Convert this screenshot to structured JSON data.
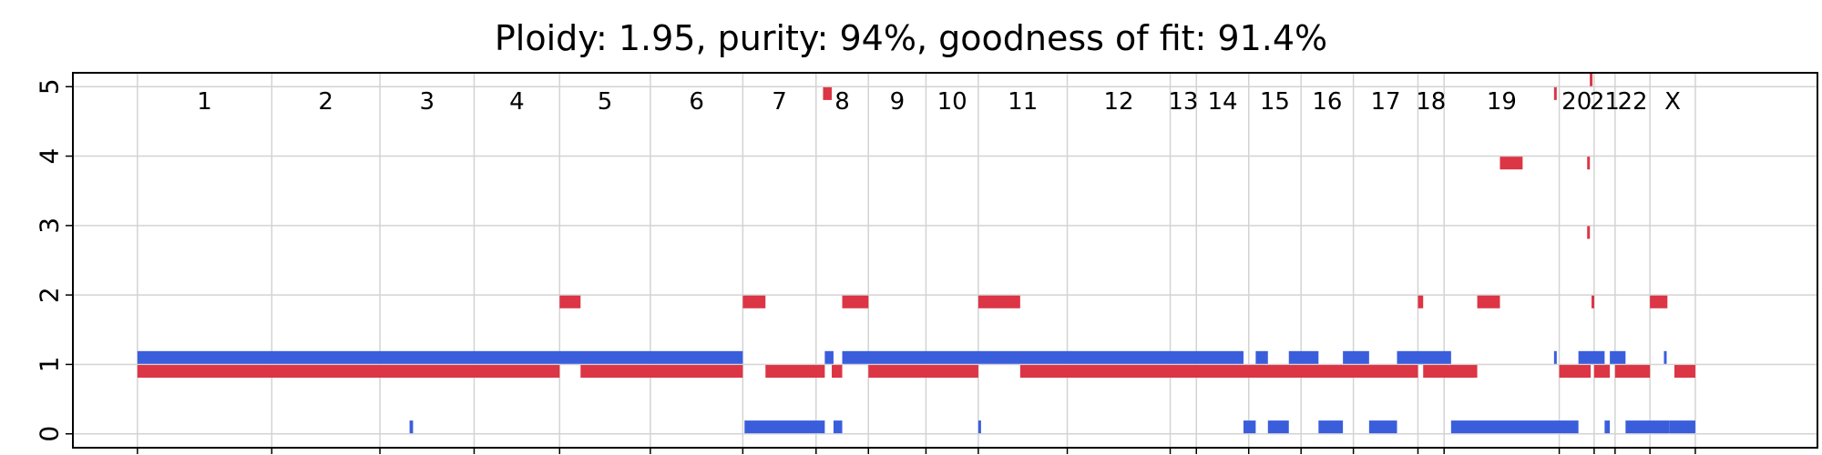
{
  "chart_data": {
    "type": "segment",
    "title": "Ploidy: 1.95, purity: 94%, goodness of fit: 91.4%",
    "xlabel": "",
    "ylabel": "",
    "ylim": [
      -0.2,
      5.2
    ],
    "yticks": [
      0,
      1,
      2,
      3,
      4,
      5
    ],
    "xlim": [
      0,
      100
    ],
    "grid": true,
    "colors": {
      "minor": "#3a5edb",
      "major": "#dc3545",
      "grid": "#d3d3d3"
    },
    "chromosomes": [
      {
        "label": "1",
        "start": 3.7,
        "end": 11.4
      },
      {
        "label": "2",
        "start": 11.4,
        "end": 17.6
      },
      {
        "label": "3",
        "start": 17.6,
        "end": 23.0
      },
      {
        "label": "4",
        "start": 23.0,
        "end": 27.9
      },
      {
        "label": "5",
        "start": 27.9,
        "end": 33.1
      },
      {
        "label": "6",
        "start": 33.1,
        "end": 38.4
      },
      {
        "label": "7",
        "start": 38.4,
        "end": 42.6
      },
      {
        "label": "8",
        "start": 42.6,
        "end": 45.6
      },
      {
        "label": "9",
        "start": 45.6,
        "end": 48.9
      },
      {
        "label": "10",
        "start": 48.9,
        "end": 51.9
      },
      {
        "label": "11",
        "start": 51.9,
        "end": 57.0
      },
      {
        "label": "12",
        "start": 57.0,
        "end": 62.9
      },
      {
        "label": "13",
        "start": 62.9,
        "end": 64.4
      },
      {
        "label": "14",
        "start": 64.4,
        "end": 67.4
      },
      {
        "label": "15",
        "start": 67.4,
        "end": 70.4
      },
      {
        "label": "16",
        "start": 70.4,
        "end": 73.4
      },
      {
        "label": "17",
        "start": 73.4,
        "end": 77.1
      },
      {
        "label": "18",
        "start": 77.1,
        "end": 78.6
      },
      {
        "label": "19",
        "start": 78.6,
        "end": 85.2
      },
      {
        "label": "20",
        "start": 85.2,
        "end": 87.2
      },
      {
        "label": "21",
        "start": 87.2,
        "end": 88.4
      },
      {
        "label": "22",
        "start": 88.4,
        "end": 90.4
      },
      {
        "label": "X",
        "start": 90.4,
        "end": 93.0
      }
    ],
    "series": [
      {
        "segments": [
          {
            "x0": 3.7,
            "x1": 38.4,
            "y": 1.1
          },
          {
            "x0": 19.3,
            "x1": 19.5,
            "y": 0.1
          },
          {
            "x0": 38.5,
            "x1": 43.1,
            "y": 0.1
          },
          {
            "x0": 43.1,
            "x1": 43.6,
            "y": 1.1
          },
          {
            "x0": 43.6,
            "x1": 44.1,
            "y": 0.1
          },
          {
            "x0": 44.1,
            "x1": 67.1,
            "y": 1.1
          },
          {
            "x0": 51.9,
            "x1": 52.05,
            "y": 0.1
          },
          {
            "x0": 67.1,
            "x1": 67.8,
            "y": 0.1
          },
          {
            "x0": 67.8,
            "x1": 68.5,
            "y": 1.1
          },
          {
            "x0": 68.5,
            "x1": 69.7,
            "y": 0.1
          },
          {
            "x0": 69.7,
            "x1": 71.4,
            "y": 1.1
          },
          {
            "x0": 71.4,
            "x1": 72.8,
            "y": 0.1
          },
          {
            "x0": 72.8,
            "x1": 74.3,
            "y": 1.1
          },
          {
            "x0": 74.3,
            "x1": 75.9,
            "y": 0.1
          },
          {
            "x0": 75.9,
            "x1": 79.0,
            "y": 1.1
          },
          {
            "x0": 79.0,
            "x1": 86.3,
            "y": 0.1
          },
          {
            "x0": 84.9,
            "x1": 85.0,
            "y": 1.1
          },
          {
            "x0": 86.3,
            "x1": 87.8,
            "y": 1.1
          },
          {
            "x0": 87.8,
            "x1": 88.1,
            "y": 0.1
          },
          {
            "x0": 88.1,
            "x1": 89.0,
            "y": 1.1
          },
          {
            "x0": 89.0,
            "x1": 91.5,
            "y": 0.1
          },
          {
            "x0": 91.2,
            "x1": 91.3,
            "y": 1.1
          },
          {
            "x0": 91.5,
            "x1": 93.0,
            "y": 0.1
          }
        ]
      },
      {
        "segments": [
          {
            "x0": 3.7,
            "x1": 27.9,
            "y": 0.9
          },
          {
            "x0": 27.9,
            "x1": 29.1,
            "y": 1.9
          },
          {
            "x0": 29.1,
            "x1": 38.4,
            "y": 0.9
          },
          {
            "x0": 38.4,
            "x1": 39.7,
            "y": 1.9
          },
          {
            "x0": 39.7,
            "x1": 43.1,
            "y": 0.9
          },
          {
            "x0": 43.0,
            "x1": 43.5,
            "y": 4.9
          },
          {
            "x0": 43.5,
            "x1": 44.1,
            "y": 0.9
          },
          {
            "x0": 44.1,
            "x1": 45.6,
            "y": 1.9
          },
          {
            "x0": 45.6,
            "x1": 51.9,
            "y": 0.9
          },
          {
            "x0": 51.9,
            "x1": 54.3,
            "y": 1.9
          },
          {
            "x0": 54.3,
            "x1": 77.1,
            "y": 0.9
          },
          {
            "x0": 77.1,
            "x1": 77.4,
            "y": 1.9
          },
          {
            "x0": 77.4,
            "x1": 80.5,
            "y": 0.9
          },
          {
            "x0": 80.5,
            "x1": 81.8,
            "y": 1.9
          },
          {
            "x0": 81.8,
            "x1": 83.1,
            "y": 3.9
          },
          {
            "x0": 84.9,
            "x1": 85.0,
            "y": 4.9
          },
          {
            "x0": 85.2,
            "x1": 87.0,
            "y": 0.9
          },
          {
            "x0": 86.8,
            "x1": 86.9,
            "y": 3.9
          },
          {
            "x0": 86.8,
            "x1": 86.9,
            "y": 2.9
          },
          {
            "x0": 86.95,
            "x1": 87.05,
            "y": 5.1
          },
          {
            "x0": 87.05,
            "x1": 87.2,
            "y": 1.9
          },
          {
            "x0": 87.2,
            "x1": 88.1,
            "y": 0.9
          },
          {
            "x0": 88.4,
            "x1": 90.4,
            "y": 0.9
          },
          {
            "x0": 90.4,
            "x1": 91.4,
            "y": 1.9
          },
          {
            "x0": 91.8,
            "x1": 93.0,
            "y": 0.9
          }
        ]
      }
    ]
  }
}
